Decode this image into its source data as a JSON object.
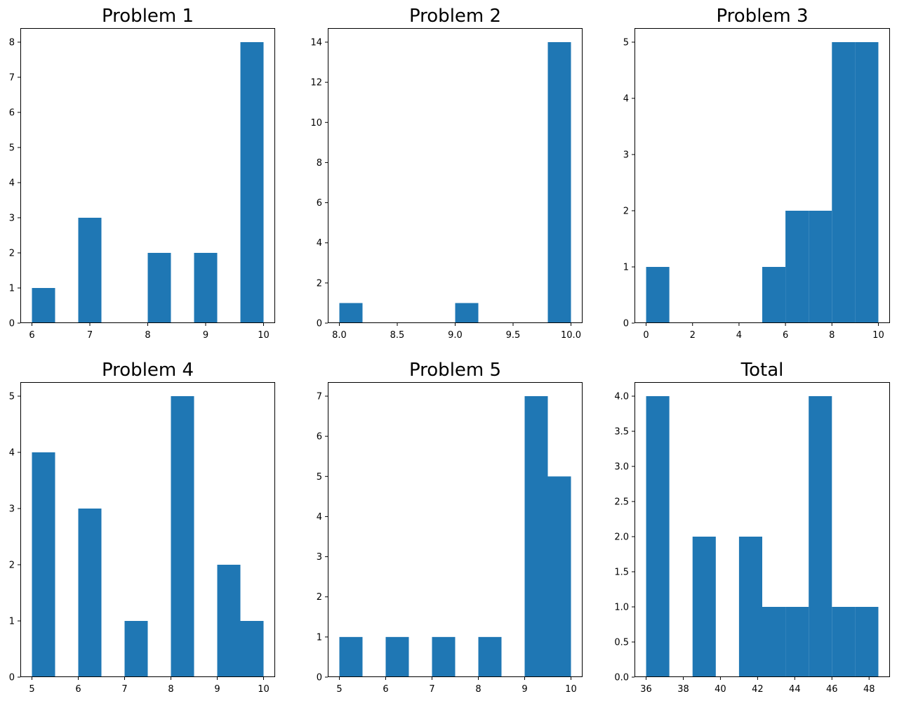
{
  "figure": {
    "bar_color": "#1f77b4",
    "axis_color": "#000000",
    "background": "#ffffff"
  },
  "chart_data": [
    {
      "type": "bar",
      "subtype": "histogram",
      "title": "Problem 1",
      "xlabel": "",
      "ylabel": "",
      "bins": [
        {
          "x0": 6.0,
          "x1": 6.4,
          "count": 1
        },
        {
          "x0": 6.4,
          "x1": 6.8,
          "count": 0
        },
        {
          "x0": 6.8,
          "x1": 7.2,
          "count": 3
        },
        {
          "x0": 7.2,
          "x1": 7.6,
          "count": 0
        },
        {
          "x0": 7.6,
          "x1": 8.0,
          "count": 0
        },
        {
          "x0": 8.0,
          "x1": 8.4,
          "count": 2
        },
        {
          "x0": 8.4,
          "x1": 8.8,
          "count": 0
        },
        {
          "x0": 8.8,
          "x1": 9.2,
          "count": 2
        },
        {
          "x0": 9.2,
          "x1": 9.6,
          "count": 0
        },
        {
          "x0": 9.6,
          "x1": 10.0,
          "count": 8
        }
      ],
      "xlim": [
        5.8,
        10.2
      ],
      "ylim": [
        0,
        8.4
      ],
      "xticks": [
        6,
        7,
        8,
        9,
        10
      ],
      "xtick_labels": [
        "6",
        "7",
        "8",
        "9",
        "10"
      ],
      "yticks": [
        0,
        1,
        2,
        3,
        4,
        5,
        6,
        7,
        8
      ],
      "ytick_labels": [
        "0",
        "1",
        "2",
        "3",
        "4",
        "5",
        "6",
        "7",
        "8"
      ],
      "grid": false,
      "legend": "none"
    },
    {
      "type": "bar",
      "subtype": "histogram",
      "title": "Problem 2",
      "xlabel": "",
      "ylabel": "",
      "bins": [
        {
          "x0": 8.0,
          "x1": 8.2,
          "count": 1
        },
        {
          "x0": 8.2,
          "x1": 8.4,
          "count": 0
        },
        {
          "x0": 8.4,
          "x1": 8.6,
          "count": 0
        },
        {
          "x0": 8.6,
          "x1": 8.8,
          "count": 0
        },
        {
          "x0": 8.8,
          "x1": 9.0,
          "count": 0
        },
        {
          "x0": 9.0,
          "x1": 9.2,
          "count": 1
        },
        {
          "x0": 9.2,
          "x1": 9.4,
          "count": 0
        },
        {
          "x0": 9.4,
          "x1": 9.6,
          "count": 0
        },
        {
          "x0": 9.6,
          "x1": 9.8,
          "count": 0
        },
        {
          "x0": 9.8,
          "x1": 10.0,
          "count": 14
        }
      ],
      "xlim": [
        7.9,
        10.1
      ],
      "ylim": [
        0,
        14.7
      ],
      "xticks": [
        8.0,
        8.5,
        9.0,
        9.5,
        10.0
      ],
      "xtick_labels": [
        "8.0",
        "8.5",
        "9.0",
        "9.5",
        "10.0"
      ],
      "yticks": [
        0,
        2,
        4,
        6,
        8,
        10,
        12,
        14
      ],
      "ytick_labels": [
        "0",
        "2",
        "4",
        "6",
        "8",
        "10",
        "12",
        "14"
      ],
      "grid": false,
      "legend": "none"
    },
    {
      "type": "bar",
      "subtype": "histogram",
      "title": "Problem 3",
      "xlabel": "",
      "ylabel": "",
      "bins": [
        {
          "x0": 0,
          "x1": 1,
          "count": 1
        },
        {
          "x0": 1,
          "x1": 2,
          "count": 0
        },
        {
          "x0": 2,
          "x1": 3,
          "count": 0
        },
        {
          "x0": 3,
          "x1": 4,
          "count": 0
        },
        {
          "x0": 4,
          "x1": 5,
          "count": 0
        },
        {
          "x0": 5,
          "x1": 6,
          "count": 1
        },
        {
          "x0": 6,
          "x1": 7,
          "count": 2
        },
        {
          "x0": 7,
          "x1": 8,
          "count": 2
        },
        {
          "x0": 8,
          "x1": 9,
          "count": 5
        },
        {
          "x0": 9,
          "x1": 10,
          "count": 5
        }
      ],
      "xlim": [
        -0.5,
        10.5
      ],
      "ylim": [
        0,
        5.25
      ],
      "xticks": [
        0,
        2,
        4,
        6,
        8,
        10
      ],
      "xtick_labels": [
        "0",
        "2",
        "4",
        "6",
        "8",
        "10"
      ],
      "yticks": [
        0,
        1,
        2,
        3,
        4,
        5
      ],
      "ytick_labels": [
        "0",
        "1",
        "2",
        "3",
        "4",
        "5"
      ],
      "grid": false,
      "legend": "none"
    },
    {
      "type": "bar",
      "subtype": "histogram",
      "title": "Problem 4",
      "xlabel": "",
      "ylabel": "",
      "bins": [
        {
          "x0": 5.0,
          "x1": 5.5,
          "count": 4
        },
        {
          "x0": 5.5,
          "x1": 6.0,
          "count": 0
        },
        {
          "x0": 6.0,
          "x1": 6.5,
          "count": 3
        },
        {
          "x0": 6.5,
          "x1": 7.0,
          "count": 0
        },
        {
          "x0": 7.0,
          "x1": 7.5,
          "count": 1
        },
        {
          "x0": 7.5,
          "x1": 8.0,
          "count": 0
        },
        {
          "x0": 8.0,
          "x1": 8.5,
          "count": 5
        },
        {
          "x0": 8.5,
          "x1": 9.0,
          "count": 0
        },
        {
          "x0": 9.0,
          "x1": 9.5,
          "count": 2
        },
        {
          "x0": 9.5,
          "x1": 10.0,
          "count": 1
        }
      ],
      "xlim": [
        4.75,
        10.25
      ],
      "ylim": [
        0,
        5.25
      ],
      "xticks": [
        5,
        6,
        7,
        8,
        9,
        10
      ],
      "xtick_labels": [
        "5",
        "6",
        "7",
        "8",
        "9",
        "10"
      ],
      "yticks": [
        0,
        1,
        2,
        3,
        4,
        5
      ],
      "ytick_labels": [
        "0",
        "1",
        "2",
        "3",
        "4",
        "5"
      ],
      "grid": false,
      "legend": "none"
    },
    {
      "type": "bar",
      "subtype": "histogram",
      "title": "Problem 5",
      "xlabel": "",
      "ylabel": "",
      "bins": [
        {
          "x0": 5.0,
          "x1": 5.5,
          "count": 1
        },
        {
          "x0": 5.5,
          "x1": 6.0,
          "count": 0
        },
        {
          "x0": 6.0,
          "x1": 6.5,
          "count": 1
        },
        {
          "x0": 6.5,
          "x1": 7.0,
          "count": 0
        },
        {
          "x0": 7.0,
          "x1": 7.5,
          "count": 1
        },
        {
          "x0": 7.5,
          "x1": 8.0,
          "count": 0
        },
        {
          "x0": 8.0,
          "x1": 8.5,
          "count": 1
        },
        {
          "x0": 8.5,
          "x1": 9.0,
          "count": 0
        },
        {
          "x0": 9.0,
          "x1": 9.5,
          "count": 7
        },
        {
          "x0": 9.5,
          "x1": 10.0,
          "count": 5
        }
      ],
      "xlim": [
        4.75,
        10.25
      ],
      "ylim": [
        0,
        7.35
      ],
      "xticks": [
        5,
        6,
        7,
        8,
        9,
        10
      ],
      "xtick_labels": [
        "5",
        "6",
        "7",
        "8",
        "9",
        "10"
      ],
      "yticks": [
        0,
        1,
        2,
        3,
        4,
        5,
        6,
        7
      ],
      "ytick_labels": [
        "0",
        "1",
        "2",
        "3",
        "4",
        "5",
        "6",
        "7"
      ],
      "grid": false,
      "legend": "none"
    },
    {
      "type": "bar",
      "subtype": "histogram",
      "title": "Total",
      "xlabel": "",
      "ylabel": "",
      "bins": [
        {
          "x0": 36.0,
          "x1": 37.25,
          "count": 4
        },
        {
          "x0": 37.25,
          "x1": 38.5,
          "count": 0
        },
        {
          "x0": 38.5,
          "x1": 39.75,
          "count": 2
        },
        {
          "x0": 39.75,
          "x1": 41.0,
          "count": 0
        },
        {
          "x0": 41.0,
          "x1": 42.25,
          "count": 2
        },
        {
          "x0": 42.25,
          "x1": 43.5,
          "count": 1
        },
        {
          "x0": 43.5,
          "x1": 44.75,
          "count": 1
        },
        {
          "x0": 44.75,
          "x1": 46.0,
          "count": 4
        },
        {
          "x0": 46.0,
          "x1": 47.25,
          "count": 1
        },
        {
          "x0": 47.25,
          "x1": 48.5,
          "count": 1
        }
      ],
      "xlim": [
        35.375,
        49.125
      ],
      "ylim": [
        0,
        4.2
      ],
      "xticks": [
        36,
        38,
        40,
        42,
        44,
        46,
        48
      ],
      "xtick_labels": [
        "36",
        "38",
        "40",
        "42",
        "44",
        "46",
        "48"
      ],
      "yticks": [
        0,
        0.5,
        1.0,
        1.5,
        2.0,
        2.5,
        3.0,
        3.5,
        4.0
      ],
      "ytick_labels": [
        "0.0",
        "0.5",
        "1.0",
        "1.5",
        "2.0",
        "2.5",
        "3.0",
        "3.5",
        "4.0"
      ],
      "grid": false,
      "legend": "none"
    }
  ]
}
